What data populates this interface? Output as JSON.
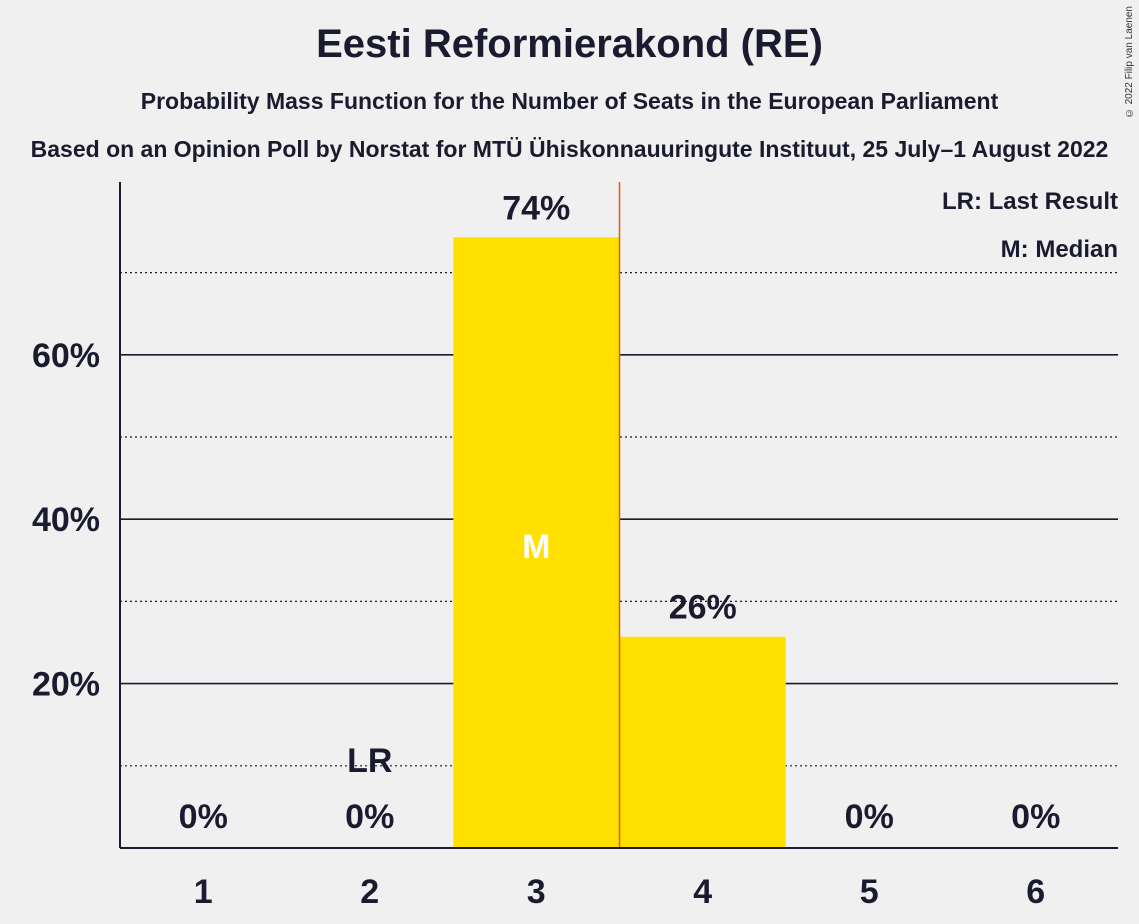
{
  "header": {
    "title": "Eesti Reformierakond (RE)",
    "subtitle": "Probability Mass Function for the Number of Seats in the European Parliament",
    "subtitle2": "Based on an Opinion Poll by Norstat for MTÜ Ühiskonnauuringute Instituut, 25 July–1 August 2022",
    "copyright": "© 2022 Filip van Laenen"
  },
  "legend": {
    "last_result": "LR: Last Result",
    "median": "M: Median"
  },
  "colors": {
    "bar": "#ffe000",
    "median_line": "#e65c00",
    "axis": "#1b1b2f",
    "background": "#f0f0f0"
  },
  "chart_data": {
    "type": "bar",
    "categories": [
      "1",
      "2",
      "3",
      "4",
      "5",
      "6"
    ],
    "values": [
      0,
      0,
      74,
      26,
      0,
      0
    ],
    "value_labels": [
      "0%",
      "0%",
      "74%",
      "26%",
      "0%",
      "0%"
    ],
    "exact_values": [
      0,
      0,
      74.3,
      25.7,
      0,
      0
    ],
    "ylim": [
      0,
      80
    ],
    "yticks_major": [
      20,
      40,
      60
    ],
    "ytick_labels": [
      "20%",
      "40%",
      "60%"
    ],
    "yticks_minor": [
      10,
      30,
      50,
      70
    ],
    "last_result_category": "2",
    "last_result_label": "LR",
    "median_category": "3",
    "median_label": "M",
    "median_line_after_category": "3",
    "xlabel": "",
    "ylabel": "",
    "grid": true,
    "legend_position": "top-right"
  }
}
